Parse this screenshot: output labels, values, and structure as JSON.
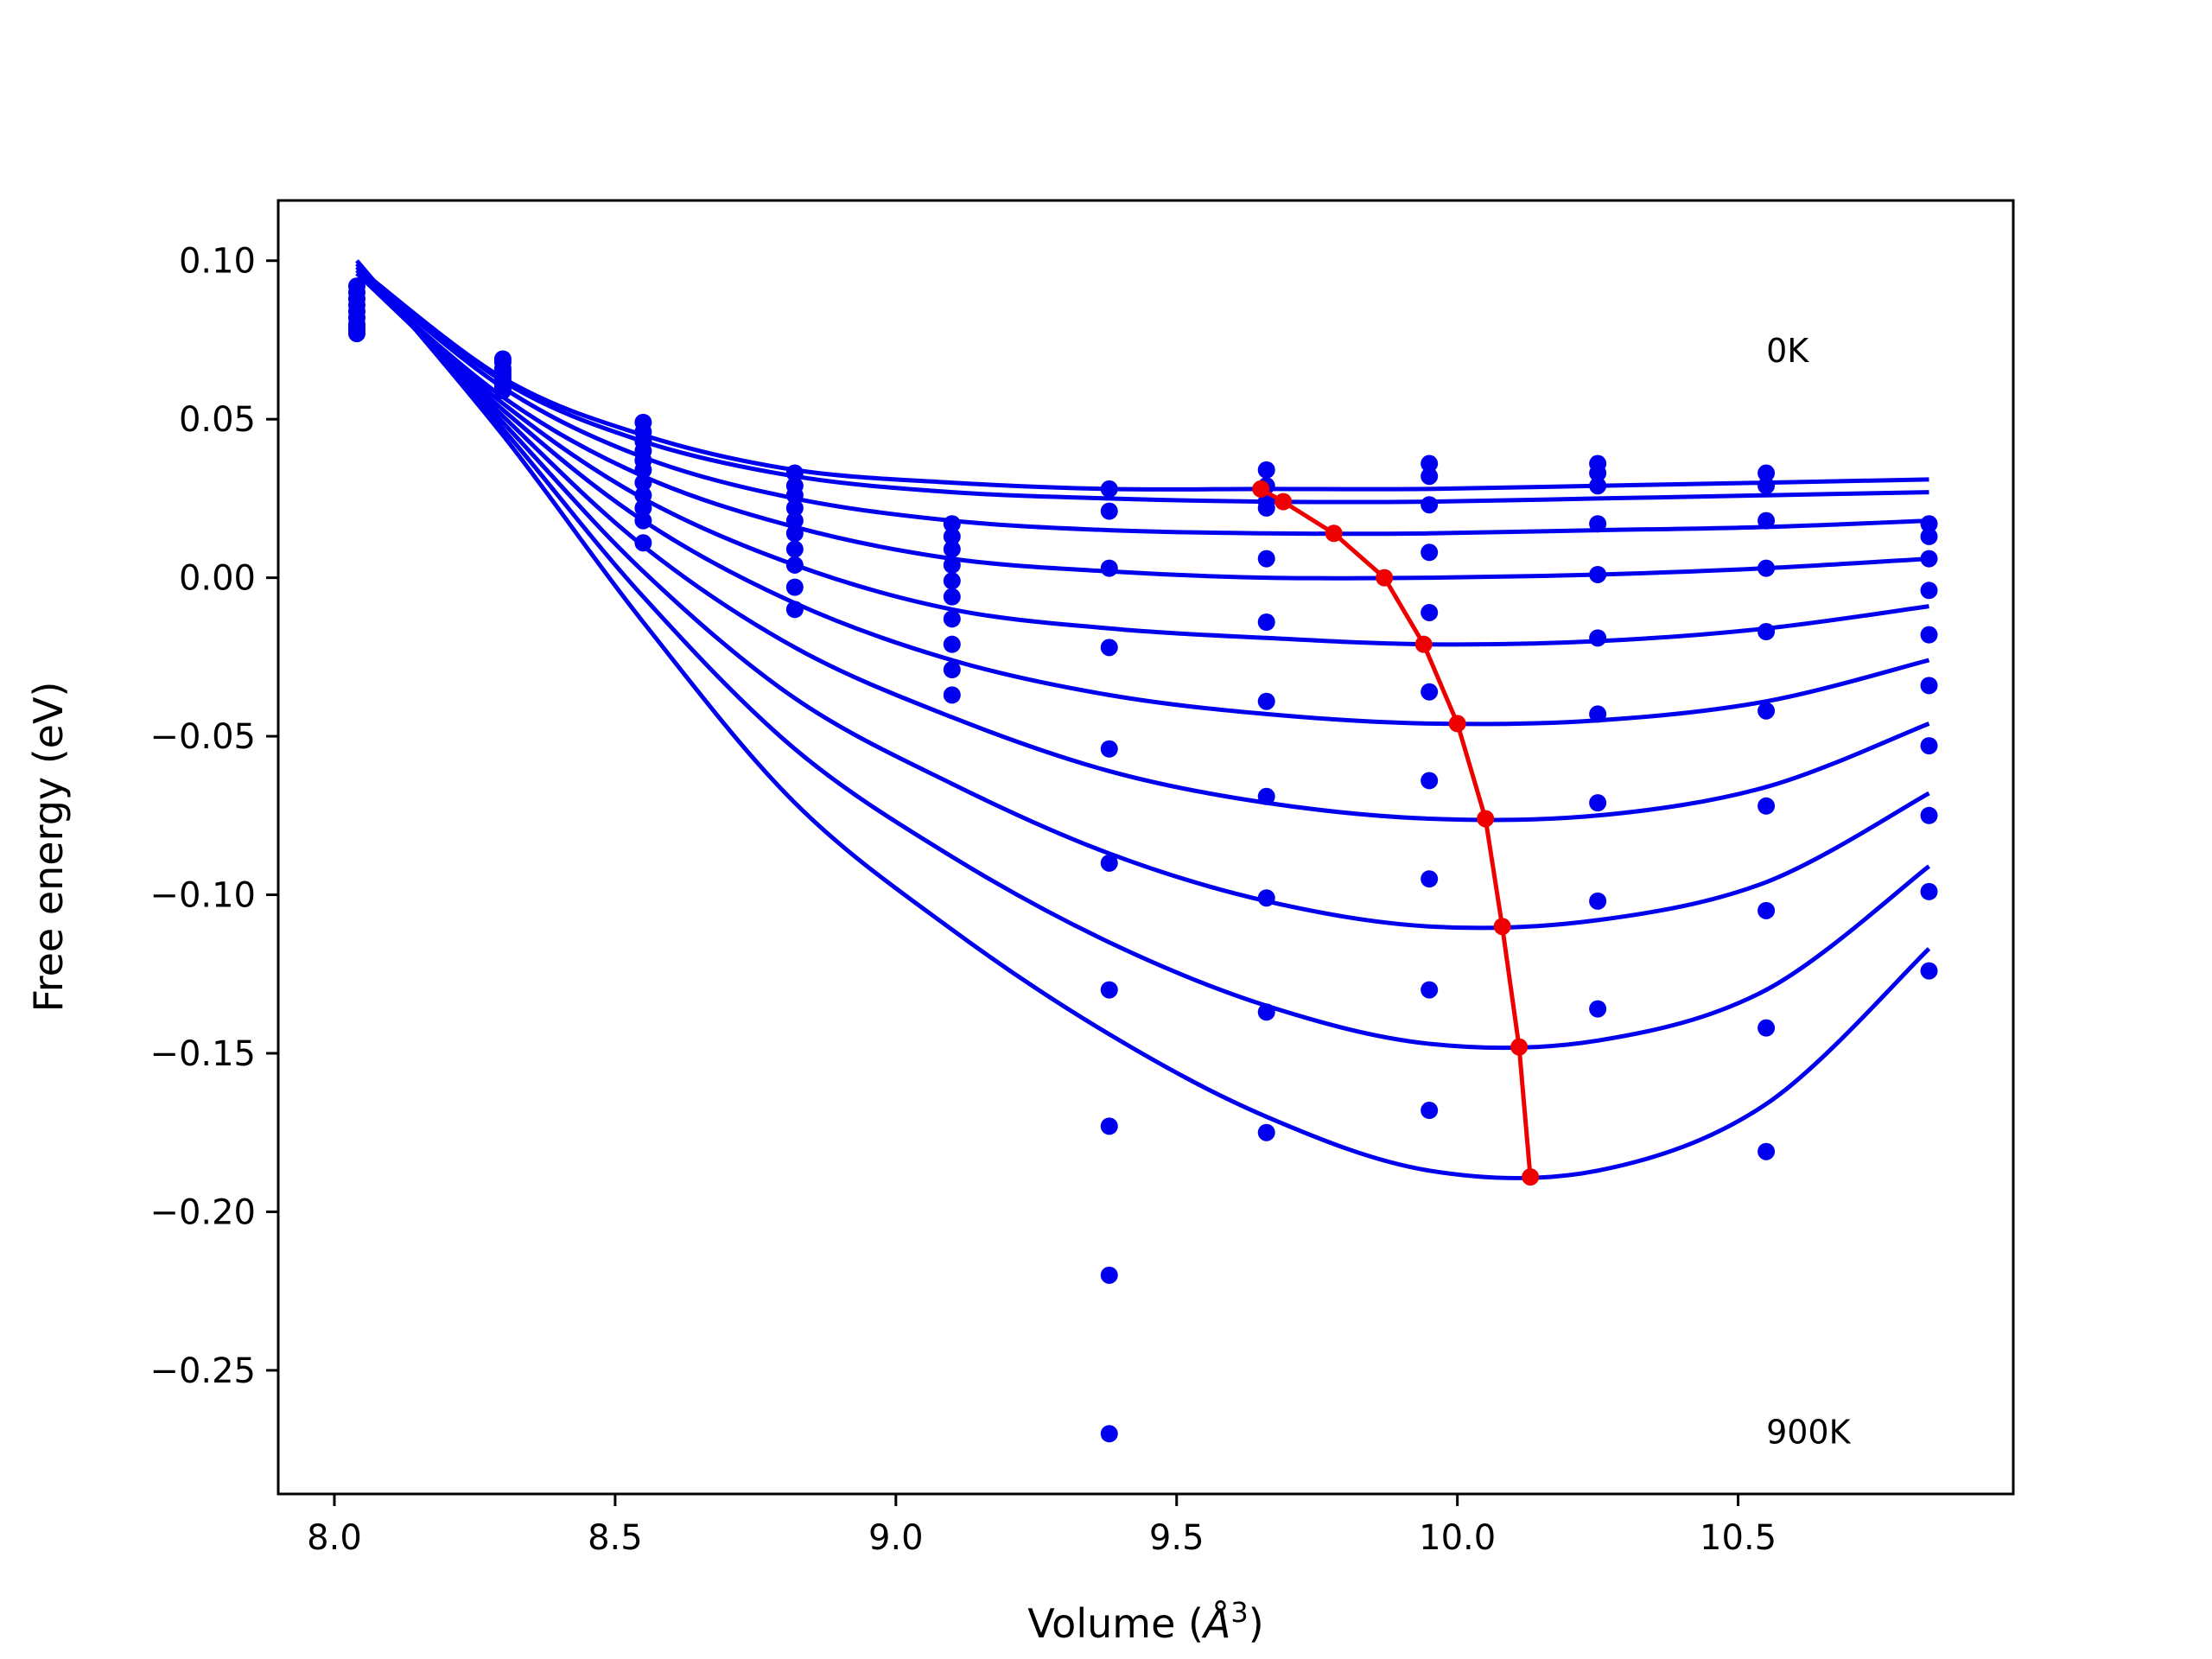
{
  "chart_data": {
    "type": "scatter",
    "title": "",
    "xlabel": "Volume (Å³)",
    "xlabel_main": "Volume (",
    "xlabel_unit": "Å",
    "xlabel_sup": "3",
    "xlabel_close": ")",
    "ylabel": "Free energy (eV)",
    "xlim": [
      7.9,
      10.99
    ],
    "ylim": [
      -0.289,
      0.119
    ],
    "xticks": [
      "8.0",
      "8.5",
      "9.0",
      "9.5",
      "10.0",
      "10.5"
    ],
    "xtick_values": [
      8.0,
      8.5,
      9.0,
      9.5,
      10.0,
      10.5
    ],
    "yticks": [
      "0.10",
      "0.05",
      "0.00",
      "−0.05",
      "−0.10",
      "−0.15",
      "−0.20",
      "−0.25"
    ],
    "ytick_values": [
      0.1,
      0.05,
      0.0,
      -0.05,
      -0.1,
      -0.15,
      -0.2,
      -0.25
    ],
    "grid": false,
    "annotations": [
      {
        "text": "0K",
        "x": 10.55,
        "y": 0.068
      },
      {
        "text": "900K",
        "x": 10.55,
        "y": -0.273
      }
    ],
    "colors": {
      "curves": "#0000ee",
      "points": "#0000ee",
      "minima": "#ee0000"
    },
    "point_volumes": [
      8.04,
      8.3,
      8.55,
      8.82,
      9.1,
      9.38,
      9.66,
      9.95,
      10.25,
      10.55,
      10.84
    ],
    "curve_x_range": [
      8.04,
      10.84
    ],
    "points": [
      {
        "x": 8.04,
        "y": [
          0.092,
          0.09,
          0.088,
          0.086,
          0.084,
          0.082,
          0.08,
          0.079,
          0.078,
          0.077
        ]
      },
      {
        "x": 8.3,
        "y": [
          0.069,
          0.068,
          0.066,
          0.065,
          0.064,
          0.063,
          0.062,
          0.061,
          0.06,
          0.059
        ]
      },
      {
        "x": 8.55,
        "y": [
          0.049,
          0.046,
          0.043,
          0.04,
          0.037,
          0.034,
          0.03,
          0.026,
          0.022,
          0.018,
          0.011
        ]
      },
      {
        "x": 8.82,
        "y": [
          0.033,
          0.029,
          0.026,
          0.022,
          0.018,
          0.014,
          0.009,
          0.004,
          -0.003,
          -0.01
        ]
      },
      {
        "x": 9.1,
        "y": [
          0.017,
          0.013,
          0.009,
          0.004,
          -0.001,
          -0.006,
          -0.013,
          -0.021,
          -0.029,
          -0.037
        ]
      },
      {
        "x": 9.38,
        "y": [
          0.028,
          0.021,
          0.003,
          -0.022,
          -0.054,
          -0.09,
          -0.13,
          -0.173,
          -0.22,
          -0.27
        ]
      },
      {
        "x": 9.66,
        "y": [
          0.034,
          0.029,
          0.024,
          0.022,
          0.006,
          -0.014,
          -0.039,
          -0.069,
          -0.101,
          -0.137,
          -0.175
        ]
      },
      {
        "x": 9.95,
        "y": [
          0.036,
          0.032,
          0.023,
          0.008,
          -0.011,
          -0.036,
          -0.064,
          -0.095,
          -0.13,
          -0.168
        ]
      },
      {
        "x": 10.25,
        "y": [
          0.036,
          0.033,
          0.029,
          0.017,
          0.001,
          -0.019,
          -0.043,
          -0.071,
          -0.102,
          -0.136
        ]
      },
      {
        "x": 10.55,
        "y": [
          0.033,
          0.029,
          0.018,
          0.003,
          -0.017,
          -0.042,
          -0.072,
          -0.105,
          -0.142,
          -0.181
        ]
      },
      {
        "x": 10.84,
        "y": [
          0.017,
          0.013,
          0.006,
          -0.004,
          -0.018,
          -0.034,
          -0.053,
          -0.075,
          -0.099,
          -0.124
        ]
      }
    ],
    "series": [
      {
        "temperature_index": 0,
        "points": [
          [
            8.04,
            0.098
          ],
          [
            8.3,
            0.063
          ],
          [
            8.55,
            0.045
          ],
          [
            8.82,
            0.034
          ],
          [
            9.1,
            0.03
          ],
          [
            9.38,
            0.028
          ],
          [
            9.66,
            0.028
          ],
          [
            9.95,
            0.028
          ],
          [
            10.25,
            0.029
          ],
          [
            10.55,
            0.03
          ],
          [
            10.84,
            0.031
          ]
        ]
      },
      {
        "temperature_index": 1,
        "points": [
          [
            8.04,
            0.098
          ],
          [
            8.3,
            0.062
          ],
          [
            8.55,
            0.043
          ],
          [
            8.82,
            0.032
          ],
          [
            9.1,
            0.027
          ],
          [
            9.38,
            0.025
          ],
          [
            9.66,
            0.024
          ],
          [
            9.95,
            0.024
          ],
          [
            10.25,
            0.025
          ],
          [
            10.55,
            0.026
          ],
          [
            10.84,
            0.027
          ]
        ]
      },
      {
        "temperature_index": 2,
        "points": [
          [
            8.04,
            0.097
          ],
          [
            8.3,
            0.06
          ],
          [
            8.55,
            0.038
          ],
          [
            8.82,
            0.025
          ],
          [
            9.1,
            0.018
          ],
          [
            9.38,
            0.015
          ],
          [
            9.66,
            0.014
          ],
          [
            9.95,
            0.014
          ],
          [
            10.25,
            0.015
          ],
          [
            10.55,
            0.016
          ],
          [
            10.84,
            0.018
          ]
        ]
      },
      {
        "temperature_index": 3,
        "points": [
          [
            8.04,
            0.096
          ],
          [
            8.3,
            0.057
          ],
          [
            8.55,
            0.032
          ],
          [
            8.82,
            0.016
          ],
          [
            9.1,
            0.006
          ],
          [
            9.38,
            0.002
          ],
          [
            9.66,
            0.0
          ],
          [
            9.95,
            0.0
          ],
          [
            10.25,
            0.001
          ],
          [
            10.55,
            0.003
          ],
          [
            10.84,
            0.006
          ]
        ]
      },
      {
        "temperature_index": 4,
        "points": [
          [
            8.04,
            0.096
          ],
          [
            8.3,
            0.055
          ],
          [
            8.55,
            0.025
          ],
          [
            8.82,
            0.004
          ],
          [
            9.1,
            -0.01
          ],
          [
            9.38,
            -0.016
          ],
          [
            9.66,
            -0.019
          ],
          [
            9.95,
            -0.021
          ],
          [
            10.25,
            -0.02
          ],
          [
            10.55,
            -0.016
          ],
          [
            10.84,
            -0.009
          ]
        ]
      },
      {
        "temperature_index": 5,
        "points": [
          [
            8.04,
            0.096
          ],
          [
            8.3,
            0.053
          ],
          [
            8.55,
            0.018
          ],
          [
            8.82,
            -0.008
          ],
          [
            9.1,
            -0.026
          ],
          [
            9.38,
            -0.037
          ],
          [
            9.66,
            -0.043
          ],
          [
            9.95,
            -0.046
          ],
          [
            10.25,
            -0.045
          ],
          [
            10.55,
            -0.039
          ],
          [
            10.84,
            -0.026
          ]
        ]
      },
      {
        "temperature_index": 6,
        "points": [
          [
            8.04,
            0.097
          ],
          [
            8.3,
            0.051
          ],
          [
            8.55,
            0.01
          ],
          [
            8.82,
            -0.022
          ],
          [
            9.1,
            -0.044
          ],
          [
            9.38,
            -0.061
          ],
          [
            9.66,
            -0.071
          ],
          [
            9.95,
            -0.076
          ],
          [
            10.25,
            -0.075
          ],
          [
            10.55,
            -0.066
          ],
          [
            10.84,
            -0.046
          ]
        ]
      },
      {
        "temperature_index": 7,
        "points": [
          [
            8.04,
            0.098
          ],
          [
            8.3,
            0.049
          ],
          [
            8.55,
            0.002
          ],
          [
            8.82,
            -0.038
          ],
          [
            9.1,
            -0.065
          ],
          [
            9.38,
            -0.087
          ],
          [
            9.66,
            -0.102
          ],
          [
            9.95,
            -0.11
          ],
          [
            10.25,
            -0.108
          ],
          [
            10.55,
            -0.096
          ],
          [
            10.84,
            -0.068
          ]
        ]
      },
      {
        "temperature_index": 8,
        "points": [
          [
            8.04,
            0.099
          ],
          [
            8.3,
            0.047
          ],
          [
            8.55,
            -0.006
          ],
          [
            8.82,
            -0.054
          ],
          [
            9.1,
            -0.088
          ],
          [
            9.38,
            -0.115
          ],
          [
            9.66,
            -0.135
          ],
          [
            9.95,
            -0.147
          ],
          [
            10.25,
            -0.146
          ],
          [
            10.55,
            -0.13
          ],
          [
            10.84,
            -0.091
          ]
        ]
      },
      {
        "temperature_index": 9,
        "points": [
          [
            8.04,
            0.1
          ],
          [
            8.3,
            0.045
          ],
          [
            8.55,
            -0.014
          ],
          [
            8.82,
            -0.071
          ],
          [
            9.1,
            -0.111
          ],
          [
            9.38,
            -0.144
          ],
          [
            9.66,
            -0.17
          ],
          [
            9.95,
            -0.187
          ],
          [
            10.25,
            -0.187
          ],
          [
            10.55,
            -0.166
          ],
          [
            10.84,
            -0.117
          ]
        ]
      }
    ],
    "minima": [
      {
        "x": 9.65,
        "y": 0.028
      },
      {
        "x": 9.69,
        "y": 0.024
      },
      {
        "x": 9.78,
        "y": 0.014
      },
      {
        "x": 9.87,
        "y": 0.0
      },
      {
        "x": 9.94,
        "y": -0.021
      },
      {
        "x": 10.0,
        "y": -0.046
      },
      {
        "x": 10.05,
        "y": -0.076
      },
      {
        "x": 10.08,
        "y": -0.11
      },
      {
        "x": 10.11,
        "y": -0.148
      },
      {
        "x": 10.13,
        "y": -0.189
      }
    ]
  }
}
